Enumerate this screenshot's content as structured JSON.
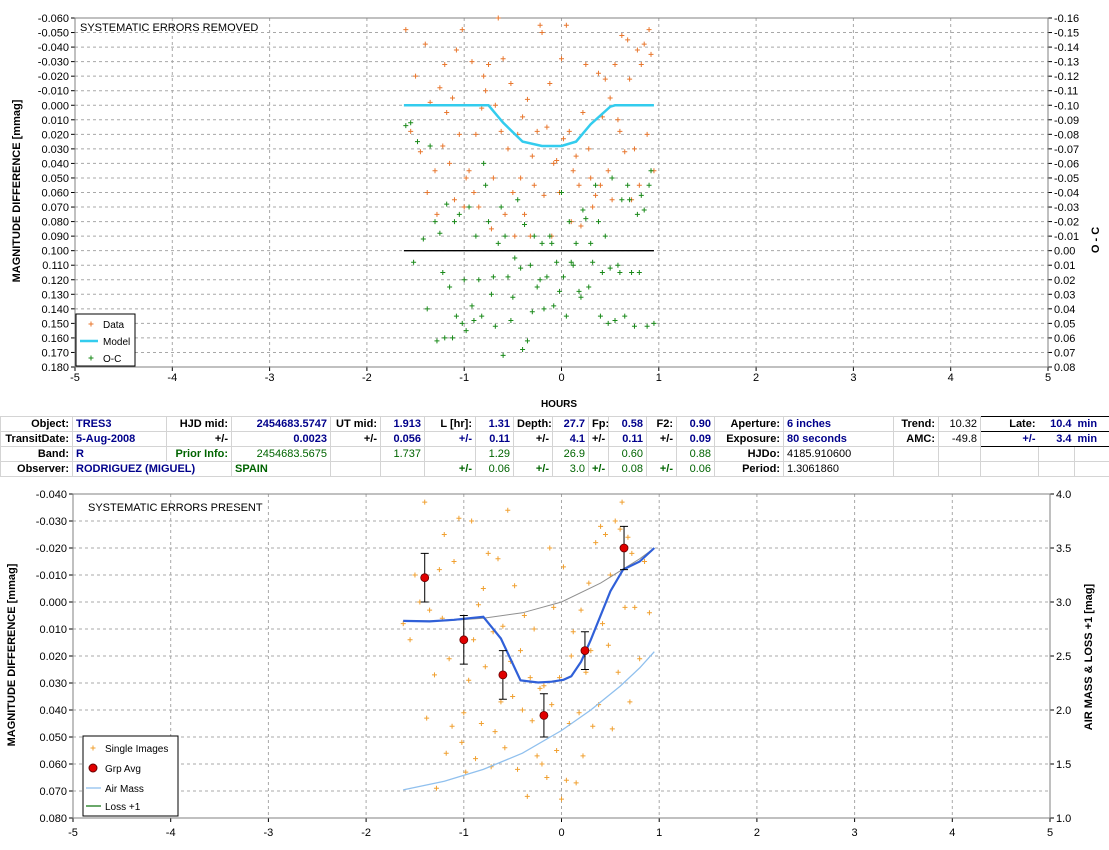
{
  "chart_data": [
    {
      "type": "scatter",
      "title": "SYSTEMATIC ERRORS REMOVED",
      "xlabel": "HOURS",
      "ylabel": "MAGNITUDE DIFFERENCE [mmag]",
      "y2label": "O - C",
      "xlim": [
        -5,
        5
      ],
      "ylim": [
        -0.06,
        0.18
      ],
      "y_inverted": true,
      "y2lim": [
        -0.16,
        0.08
      ],
      "grid": true,
      "legend": "bottom-left",
      "legend_entries": [
        "Data",
        "Model",
        "O-C"
      ],
      "colors": {
        "data": "#e8772e",
        "model": "#33ccee",
        "oc": "#1a8a1a",
        "zero_line": "#000000"
      },
      "xticks": [
        "-5",
        "-4",
        "-3",
        "-2",
        "-1",
        "0",
        "1",
        "2",
        "3",
        "4",
        "5"
      ],
      "yticks": [
        "-0.060",
        "-0.050",
        "-0.040",
        "-0.030",
        "-0.020",
        "-0.010",
        "0.000",
        "0.010",
        "0.020",
        "0.030",
        "0.040",
        "0.050",
        "0.060",
        "0.070",
        "0.080",
        "0.090",
        "0.100",
        "0.110",
        "0.120",
        "0.130",
        "0.140",
        "0.150",
        "0.160",
        "0.170",
        "0.180"
      ],
      "y2ticks": [
        "-0.16",
        "-0.15",
        "-0.14",
        "-0.13",
        "-0.12",
        "-0.11",
        "-0.10",
        "-0.09",
        "-0.08",
        "-0.07",
        "-0.06",
        "-0.05",
        "-0.04",
        "-0.03",
        "-0.02",
        "-0.01",
        "0.00",
        "0.01",
        "0.02",
        "0.03",
        "0.04",
        "0.05",
        "0.06",
        "0.07",
        "0.08"
      ],
      "model": {
        "x": [
          -1.62,
          -0.75,
          -0.6,
          -0.4,
          -0.2,
          0,
          0.15,
          0.3,
          0.5,
          0.55,
          0.95
        ],
        "y": [
          0.0,
          0.0,
          0.012,
          0.025,
          0.028,
          0.028,
          0.025,
          0.013,
          0.001,
          0.0,
          0.0
        ]
      },
      "zero_line": {
        "x": [
          -1.62,
          0.95
        ],
        "y": [
          0.1,
          0.1
        ]
      },
      "data": {
        "x": [
          -1.6,
          -1.55,
          -1.5,
          -1.45,
          -1.4,
          -1.38,
          -1.35,
          -1.3,
          -1.28,
          -1.25,
          -1.22,
          -1.2,
          -1.18,
          -1.15,
          -1.12,
          -1.1,
          -1.08,
          -1.05,
          -1.02,
          -1.0,
          -0.98,
          -0.95,
          -0.92,
          -0.9,
          -0.88,
          -0.85,
          -0.82,
          -0.8,
          -0.78,
          -0.75,
          -0.72,
          -0.7,
          -0.68,
          -0.65,
          -0.62,
          -0.6,
          -0.58,
          -0.55,
          -0.52,
          -0.5,
          -0.48,
          -0.45,
          -0.42,
          -0.4,
          -0.38,
          -0.35,
          -0.32,
          -0.3,
          -0.28,
          -0.25,
          -0.22,
          -0.2,
          -0.18,
          -0.15,
          -0.12,
          -0.1,
          -0.08,
          -0.05,
          -0.02,
          0.0,
          0.02,
          0.05,
          0.08,
          0.1,
          0.12,
          0.15,
          0.18,
          0.2,
          0.22,
          0.25,
          0.28,
          0.3,
          0.32,
          0.35,
          0.38,
          0.4,
          0.42,
          0.45,
          0.48,
          0.5,
          0.52,
          0.55,
          0.58,
          0.6,
          0.62,
          0.65,
          0.68,
          0.7,
          0.72,
          0.75,
          0.78,
          0.8,
          0.82,
          0.85,
          0.88,
          0.9,
          0.92,
          0.95
        ],
        "y": [
          -0.052,
          0.018,
          -0.02,
          0.032,
          -0.042,
          0.06,
          -0.002,
          0.045,
          0.075,
          -0.012,
          0.028,
          -0.028,
          0.005,
          0.04,
          -0.005,
          0.065,
          -0.038,
          0.02,
          -0.052,
          0.07,
          0.05,
          0.045,
          -0.03,
          0.06,
          0.02,
          0.07,
          0.002,
          -0.02,
          -0.01,
          -0.028,
          0.085,
          0.05,
          0.0,
          -0.06,
          0.018,
          -0.032,
          0.075,
          0.03,
          -0.015,
          0.06,
          0.09,
          0.02,
          0.05,
          0.008,
          0.075,
          -0.004,
          0.09,
          0.035,
          0.055,
          0.018,
          -0.055,
          -0.05,
          0.062,
          0.015,
          -0.015,
          0.09,
          0.04,
          0.038,
          0.06,
          -0.032,
          0.023,
          -0.055,
          0.018,
          0.08,
          0.045,
          0.035,
          0.055,
          0.083,
          0.005,
          -0.028,
          0.03,
          0.05,
          0.07,
          0.062,
          -0.022,
          0.055,
          0.008,
          -0.018,
          0.045,
          -0.005,
          0.065,
          -0.028,
          0.01,
          0.018,
          -0.048,
          0.032,
          -0.045,
          -0.018,
          0.065,
          0.03,
          -0.038,
          0.055,
          -0.028,
          -0.042,
          0.02,
          -0.052,
          -0.035,
          0.045
        ]
      },
      "oc": {
        "x": [
          -1.6,
          -1.55,
          -1.52,
          -1.48,
          -1.42,
          -1.38,
          -1.35,
          -1.3,
          -1.28,
          -1.25,
          -1.22,
          -1.2,
          -1.18,
          -1.15,
          -1.12,
          -1.1,
          -1.08,
          -1.05,
          -1.02,
          -1.0,
          -0.98,
          -0.95,
          -0.92,
          -0.9,
          -0.88,
          -0.85,
          -0.82,
          -0.8,
          -0.78,
          -0.75,
          -0.72,
          -0.7,
          -0.68,
          -0.65,
          -0.62,
          -0.6,
          -0.58,
          -0.55,
          -0.52,
          -0.5,
          -0.48,
          -0.45,
          -0.42,
          -0.4,
          -0.38,
          -0.35,
          -0.32,
          -0.3,
          -0.28,
          -0.25,
          -0.22,
          -0.2,
          -0.18,
          -0.15,
          -0.12,
          -0.1,
          -0.08,
          -0.05,
          -0.02,
          0.0,
          0.02,
          0.05,
          0.08,
          0.1,
          0.12,
          0.15,
          0.18,
          0.2,
          0.22,
          0.25,
          0.28,
          0.3,
          0.32,
          0.35,
          0.38,
          0.4,
          0.42,
          0.45,
          0.48,
          0.5,
          0.52,
          0.55,
          0.58,
          0.6,
          0.62,
          0.65,
          0.68,
          0.7,
          0.72,
          0.75,
          0.78,
          0.8,
          0.82,
          0.85,
          0.88,
          0.9,
          0.92,
          0.95
        ],
        "y": [
          -0.086,
          -0.088,
          0.008,
          -0.075,
          -0.008,
          0.04,
          -0.072,
          -0.02,
          0.062,
          -0.012,
          0.015,
          0.06,
          -0.032,
          0.025,
          0.06,
          -0.02,
          0.045,
          -0.025,
          0.05,
          0.02,
          0.055,
          -0.03,
          0.038,
          0.048,
          -0.01,
          0.02,
          0.045,
          -0.06,
          -0.045,
          -0.02,
          0.03,
          0.018,
          0.052,
          -0.005,
          -0.03,
          0.072,
          -0.01,
          0.018,
          0.048,
          0.032,
          0.005,
          -0.035,
          0.012,
          0.068,
          -0.018,
          0.062,
          0.01,
          0.042,
          -0.01,
          0.025,
          0.02,
          -0.005,
          0.04,
          0.018,
          -0.01,
          -0.005,
          0.038,
          0.008,
          0.028,
          -0.04,
          0.018,
          0.045,
          -0.02,
          0.008,
          0.01,
          -0.005,
          0.028,
          0.032,
          -0.028,
          -0.022,
          0.025,
          -0.005,
          0.008,
          -0.045,
          -0.02,
          0.045,
          0.015,
          -0.01,
          0.05,
          0.012,
          -0.05,
          0.048,
          0.01,
          0.015,
          -0.035,
          0.045,
          -0.045,
          -0.035,
          0.015,
          0.052,
          -0.025,
          0.015,
          -0.038,
          -0.028,
          0.052,
          -0.045,
          -0.055,
          0.05
        ]
      }
    },
    {
      "type": "scatter",
      "title": "SYSTEMATIC ERRORS PRESENT",
      "xlabel": "",
      "ylabel": "MAGNITUDE DIFFERENCE [mmag]",
      "y2label": "AIR MASS & LOSS +1 [mag]",
      "xlim": [
        -5,
        5
      ],
      "ylim": [
        -0.04,
        0.08
      ],
      "y_inverted": true,
      "y2lim": [
        1.0,
        4.0
      ],
      "grid": true,
      "legend": "bottom-left",
      "legend_entries": [
        "Single Images",
        "Grp Avg",
        "Air Mass",
        "Loss +1"
      ],
      "colors": {
        "single": "#f0a030",
        "grp": "#e00000",
        "fit": "#3060d8",
        "airmass": "#90c0ee",
        "loss": "#1a7a1a",
        "trend": "#909090"
      },
      "xticks": [
        "-5",
        "-4",
        "-3",
        "-2",
        "-1",
        "0",
        "1",
        "2",
        "3",
        "4",
        "5"
      ],
      "yticks": [
        "-0.040",
        "-0.030",
        "-0.020",
        "-0.010",
        "0.000",
        "0.010",
        "0.020",
        "0.030",
        "0.040",
        "0.050",
        "0.060",
        "0.070",
        "0.080"
      ],
      "y2ticks": [
        "4.0",
        "3.5",
        "3.0",
        "2.5",
        "2.0",
        "1.5",
        "1.0"
      ],
      "single_images": {
        "x": [
          -1.62,
          -1.55,
          -1.5,
          -1.45,
          -1.4,
          -1.38,
          -1.35,
          -1.3,
          -1.28,
          -1.25,
          -1.22,
          -1.2,
          -1.18,
          -1.15,
          -1.12,
          -1.1,
          -1.05,
          -1.02,
          -1.0,
          -0.98,
          -0.95,
          -0.92,
          -0.9,
          -0.88,
          -0.85,
          -0.82,
          -0.8,
          -0.78,
          -0.75,
          -0.72,
          -0.7,
          -0.68,
          -0.65,
          -0.62,
          -0.6,
          -0.58,
          -0.55,
          -0.52,
          -0.5,
          -0.48,
          -0.45,
          -0.42,
          -0.4,
          -0.38,
          -0.35,
          -0.32,
          -0.3,
          -0.28,
          -0.25,
          -0.22,
          -0.2,
          -0.18,
          -0.15,
          -0.12,
          -0.1,
          -0.08,
          -0.05,
          -0.02,
          0.0,
          0.02,
          0.05,
          0.08,
          0.1,
          0.12,
          0.15,
          0.18,
          0.2,
          0.22,
          0.25,
          0.28,
          0.3,
          0.32,
          0.35,
          0.38,
          0.4,
          0.42,
          0.45,
          0.48,
          0.5,
          0.52,
          0.55,
          0.58,
          0.6,
          0.62,
          0.65,
          0.68,
          0.7,
          0.72,
          0.75,
          0.8,
          0.85,
          0.9
        ],
        "y": [
          0.008,
          0.014,
          -0.01,
          0.0,
          -0.037,
          0.043,
          0.003,
          0.027,
          0.069,
          -0.012,
          0.006,
          -0.025,
          0.056,
          0.021,
          0.046,
          -0.015,
          -0.031,
          0.052,
          0.041,
          0.063,
          0.029,
          -0.03,
          0.014,
          0.058,
          0.001,
          0.045,
          -0.005,
          0.024,
          -0.018,
          0.061,
          0.011,
          0.048,
          -0.016,
          0.037,
          0.009,
          0.054,
          -0.034,
          0.022,
          0.035,
          -0.006,
          0.062,
          0.018,
          0.04,
          0.005,
          0.072,
          0.028,
          0.044,
          0.01,
          0.057,
          0.032,
          0.06,
          0.031,
          0.065,
          -0.02,
          0.038,
          0.002,
          0.055,
          0.028,
          0.073,
          -0.013,
          0.066,
          0.045,
          0.02,
          0.011,
          0.067,
          0.041,
          0.003,
          0.057,
          0.026,
          -0.007,
          0.018,
          0.046,
          -0.022,
          0.038,
          -0.028,
          0.008,
          -0.025,
          0.016,
          -0.01,
          0.047,
          -0.03,
          0.026,
          -0.027,
          -0.037,
          0.002,
          -0.024,
          0.037,
          -0.018,
          0.002,
          0.021,
          -0.015,
          0.004
        ]
      },
      "grp_avg": {
        "x": [
          -1.4,
          -1.0,
          -0.6,
          -0.18,
          0.24,
          0.64
        ],
        "y": [
          -0.009,
          0.014,
          0.027,
          0.042,
          0.018,
          -0.02
        ],
        "err": [
          0.009,
          0.009,
          0.009,
          0.008,
          0.007,
          0.008
        ]
      },
      "fit": {
        "x": [
          -1.62,
          -1.35,
          -1.1,
          -0.8,
          -0.62,
          -0.42,
          -0.24,
          -0.1,
          0.02,
          0.1,
          0.2,
          0.3,
          0.5,
          0.63,
          0.8,
          0.95
        ],
        "y": [
          0.007,
          0.0072,
          0.0066,
          0.0055,
          0.0135,
          0.029,
          0.0298,
          0.0295,
          0.0288,
          0.0275,
          0.0222,
          0.014,
          -0.004,
          -0.012,
          -0.015,
          -0.02
        ]
      },
      "trend": {
        "x": [
          -1.62,
          -1.2,
          -0.8,
          -0.4,
          0.0,
          0.4,
          0.8,
          0.95
        ],
        "y": [
          0.007,
          0.007,
          0.006,
          0.004,
          0.0,
          -0.007,
          -0.016,
          -0.02
        ]
      },
      "air_mass": {
        "x": [
          -1.62,
          -1.2,
          -0.8,
          -0.4,
          0.0,
          0.3,
          0.6,
          0.8,
          0.95
        ],
        "y": [
          1.26,
          1.34,
          1.45,
          1.6,
          1.81,
          2.0,
          2.22,
          2.39,
          2.54
        ]
      },
      "loss": {
        "x": [],
        "y": []
      }
    }
  ],
  "info_table": {
    "row1": {
      "object_label": "Object:",
      "object": "TRES3",
      "hjd_mid_label": "HJD mid:",
      "hjd_mid": "2454683.5747",
      "ut_mid_label": "UT mid:",
      "ut_mid": "1.913",
      "l_hr_label": "L [hr]:",
      "l_hr": "1.31",
      "depth_label": "Depth:",
      "depth": "27.7",
      "fp_label": "Fp:",
      "fp": "0.58",
      "f2_label": "F2:",
      "f2": "0.90",
      "aperture_label": "Aperture:",
      "aperture": "6 inches",
      "trend_label": "Trend:",
      "trend": "10.32",
      "late_label": "Late:",
      "late": "10.4",
      "late_unit": "min"
    },
    "row2": {
      "transit_label": "TransitDate:",
      "transit_date": "5-Aug-2008",
      "pm1": "+/-",
      "hjd_err": "0.0023",
      "pm2": "+/-",
      "ut_err": "0.056",
      "pm3": "+/-",
      "l_err": "0.11",
      "pm4": "+/-",
      "depth_err": "4.1",
      "pm5": "+/-",
      "fp_err": "0.11",
      "pm6": "+/-",
      "f2_err": "0.09",
      "exposure_label": "Exposure:",
      "exposure": "80 seconds",
      "amc_label": "AMC:",
      "amc": "-49.8",
      "pm7": "+/-",
      "late_err": "3.4",
      "late_err_unit": "min"
    },
    "row3": {
      "band_label": "Band:",
      "band": "R",
      "prior_label": "Prior Info:",
      "prior_hjd": "2454683.5675",
      "prior_ut": "1.737",
      "prior_l": "1.29",
      "prior_depth": "26.9",
      "prior_fp": "0.60",
      "prior_f2": "0.88",
      "hjdo_label": "HJDo:",
      "hjdo": "4185.910600"
    },
    "row4": {
      "observer_label": "Observer:",
      "observer": "RODRIGUEZ (MIGUEL)",
      "location": "SPAIN",
      "pm1": "+/-",
      "prior_l_err": "0.06",
      "pm2": "+/-",
      "prior_depth_err": "3.0",
      "pm3": "+/-",
      "prior_fp_err": "0.08",
      "pm4": "+/-",
      "prior_f2_err": "0.06",
      "period_label": "Period:",
      "period": "1.3061860"
    }
  }
}
